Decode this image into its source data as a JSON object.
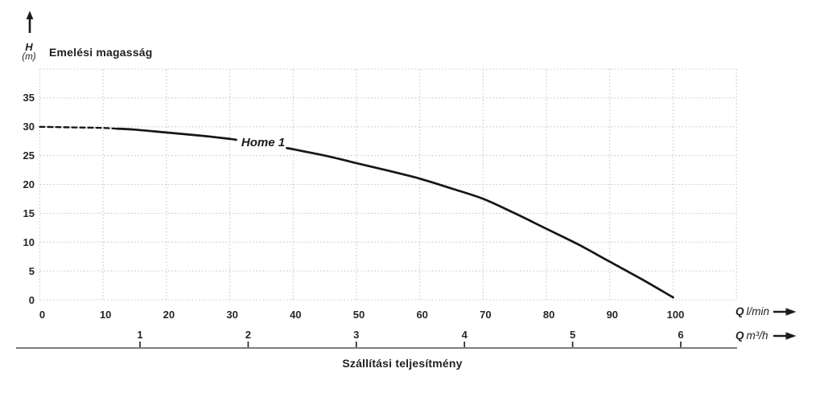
{
  "chart_data": {
    "type": "line",
    "title": "Emelési magasság",
    "xlabel": "Szállítási teljesítmény",
    "y_axis": {
      "symbol": "H",
      "unit": "(m)",
      "ticks": [
        35,
        30,
        25,
        20,
        15,
        10,
        5,
        0
      ],
      "range": [
        0,
        40
      ],
      "tick_step": 5
    },
    "x_axis_lmin": {
      "symbol": "Q",
      "unit": "l/min",
      "ticks": [
        0,
        10,
        20,
        30,
        40,
        50,
        60,
        70,
        80,
        90,
        100
      ],
      "range": [
        0,
        110
      ],
      "grid_step": 10
    },
    "x_axis_m3h": {
      "symbol": "Q",
      "unit": "m³/h",
      "ticks": [
        1,
        2,
        3,
        4,
        5,
        6
      ]
    },
    "grid": true,
    "legend_position": "inline-on-curve",
    "series": [
      {
        "name": "Home 1",
        "x": [
          0,
          5,
          10,
          15,
          20,
          25,
          30,
          35,
          40,
          45,
          50,
          55,
          60,
          65,
          70,
          75,
          80,
          85,
          90,
          95,
          100
        ],
        "y": [
          30.0,
          29.9,
          29.8,
          29.5,
          29.0,
          28.5,
          27.9,
          27.1,
          26.1,
          25.0,
          23.7,
          22.4,
          21.0,
          19.3,
          17.5,
          15.0,
          12.3,
          9.6,
          6.6,
          3.6,
          0.4
        ],
        "segments": [
          {
            "style": "dashed",
            "from": 0,
            "to": 12.2
          },
          {
            "style": "solid",
            "from": 12.2,
            "to": 31
          },
          {
            "style": "solid",
            "from": 39,
            "to": 100
          }
        ]
      }
    ]
  },
  "colors": {
    "curve": "#161616",
    "grid": "#c9c9c9",
    "text": "#1f1f1f",
    "scale_line": "#7d7d7d",
    "tick_mark": "#2b2b2b",
    "arrow": "#1c1c1c"
  }
}
